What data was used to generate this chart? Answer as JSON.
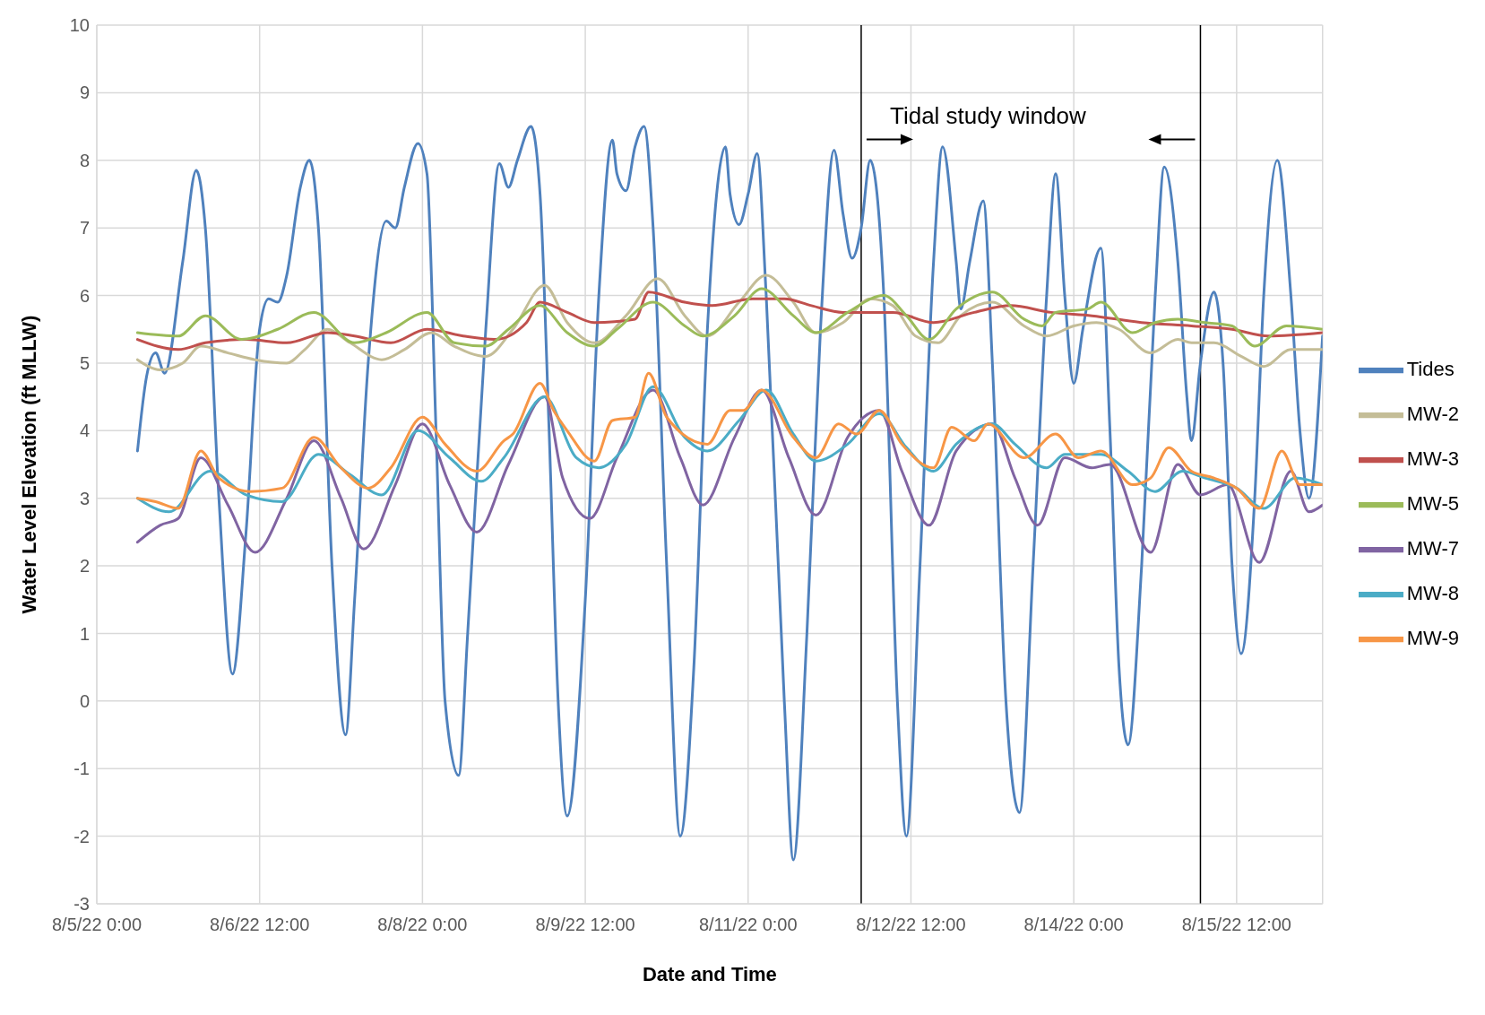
{
  "chart_data": {
    "type": "line",
    "xlabel": "Date and Time",
    "ylabel": "Water Level Elevation (ft MLLW)",
    "xlim": [
      "--08-05T00:00",
      "--08-16T07:00"
    ],
    "ylim": [
      -3,
      10
    ],
    "xticks": [
      {
        "value": "--08-05T00:00",
        "label": "8/5/22 0:00"
      },
      {
        "value": "--08-06T12:00",
        "label": "8/6/22 12:00"
      },
      {
        "value": "--08-08T00:00",
        "label": "8/8/22 0:00"
      },
      {
        "value": "--08-09T12:00",
        "label": "8/9/22 12:00"
      },
      {
        "value": "--08-11T00:00",
        "label": "8/11/22 0:00"
      },
      {
        "value": "--08-12T12:00",
        "label": "8/12/22 12:00"
      },
      {
        "value": "--08-14T00:00",
        "label": "8/14/22 0:00"
      },
      {
        "value": "--08-15T12:00",
        "label": "8/15/22 12:00"
      }
    ],
    "yticks": [
      -3,
      -2,
      -1,
      0,
      1,
      2,
      3,
      4,
      5,
      6,
      7,
      8,
      9,
      10
    ],
    "grid": true,
    "legend": "right",
    "marker": "none",
    "line_style": "solid",
    "ref_lines": [
      {
        "axis": "x",
        "value": "--08-12T01:00",
        "color": "#000000"
      },
      {
        "axis": "x",
        "value": "--08-15T04:00",
        "color": "#000000"
      }
    ],
    "annotations": [
      "Tidal study window"
    ],
    "series": [
      {
        "name": "Tides",
        "color": "#4f81bd",
        "x": [
          "--08-05T09:00",
          "--08-05T11:00",
          "--08-05T13:00",
          "--08-05T15:00",
          "--08-05T19:00",
          "--08-05T22:00",
          "--08-06T00:00",
          "--08-06T03:00",
          "--08-06T06:00",
          "--08-06T09:00",
          "--08-06T12:00",
          "--08-06T14:00",
          "--08-06T16:00",
          "--08-06T18:00",
          "--08-06T21:00",
          "--08-06T23:00",
          "--08-07T01:00",
          "--08-07T04:00",
          "--08-07T07:00",
          "--08-07T09:00",
          "--08-07T12:00",
          "--08-07T16:00",
          "--08-07T18:00",
          "--08-07T20:00",
          "--08-07T23:00",
          "--08-08T01:00",
          "--08-08T03:00",
          "--08-08T05:00",
          "--08-08T08:00",
          "--08-08T10:00",
          "--08-08T14:00",
          "--08-08T17:00",
          "--08-08T19:00",
          "--08-08T21:00",
          "--08-09T00:00",
          "--08-09T02:00",
          "--08-09T04:00",
          "--08-09T06:00",
          "--08-09T08:00",
          "--08-09T12:00",
          "--08-09T15:00",
          "--08-09T18:00",
          "--08-09T19:00",
          "--08-09T21:00",
          "--08-09T23:00",
          "--08-10T01:00",
          "--08-10T03:00",
          "--08-10T06:00",
          "--08-10T09:00",
          "--08-10T12:00",
          "--08-10T15:00",
          "--08-10T19:00",
          "--08-10T20:00",
          "--08-10T22:00",
          "--08-11T00:00",
          "--08-11T02:00",
          "--08-11T04:00",
          "--08-11T08:00",
          "--08-11T10:00",
          "--08-11T13:00",
          "--08-11T16:00",
          "--08-11T19:00",
          "--08-11T21:00",
          "--08-11T23:00",
          "--08-12T01:00",
          "--08-12T03:00",
          "--08-12T06:00",
          "--08-12T09:00",
          "--08-12T11:00",
          "--08-12T14:00",
          "--08-12T17:00",
          "--08-12T19:00",
          "--08-12T22:00",
          "--08-12T23:00",
          "--08-13T01:00",
          "--08-13T04:00",
          "--08-13T06:00",
          "--08-13T09:00",
          "--08-13T12:00",
          "--08-13T15:00",
          "--08-13T18:00",
          "--08-13T20:00",
          "--08-13T22:00",
          "--08-14T00:00",
          "--08-14T02:00",
          "--08-14T06:00",
          "--08-14T08:00",
          "--08-14T10:00",
          "--08-14T12:00",
          "--08-14T15:00",
          "--08-14T18:00",
          "--08-14T20:00",
          "--08-14T23:00",
          "--08-15T01:00",
          "--08-15T02:00",
          "--08-15T04:00",
          "--08-15T07:00",
          "--08-15T09:00",
          "--08-15T11:00",
          "--08-15T13:00",
          "--08-15T16:00",
          "--08-15T18:00",
          "--08-15T21:00",
          "--08-16T00:00",
          "--08-16T02:00",
          "--08-16T04:00",
          "--08-16T07:00"
        ],
        "values": [
          3.7,
          4.8,
          5.15,
          4.85,
          6.5,
          7.85,
          7.0,
          3,
          0.4,
          2.5,
          5.5,
          5.95,
          5.9,
          6.3,
          7.6,
          8.0,
          7,
          2,
          -0.5,
          1.5,
          5,
          7.1,
          7.0,
          7.6,
          8.25,
          7.8,
          4,
          0,
          -1.1,
          1,
          5.5,
          7.95,
          7.6,
          8.0,
          8.5,
          7.5,
          4,
          0,
          -1.7,
          1.5,
          6,
          8.3,
          7.8,
          7.55,
          8.2,
          8.5,
          7,
          2,
          -2.0,
          0.5,
          5.5,
          8.2,
          7.5,
          7.05,
          7.5,
          8.1,
          6,
          0,
          -2.35,
          1,
          5.5,
          8.15,
          7.2,
          6.55,
          7.0,
          8.0,
          6,
          0,
          -2.0,
          2,
          6.5,
          8.2,
          6.5,
          5.8,
          6.5,
          7.4,
          5,
          0,
          -1.65,
          2,
          6,
          7.8,
          6,
          4.7,
          5.5,
          6.7,
          4,
          0.5,
          -0.65,
          2,
          6,
          7.9,
          6.5,
          4.5,
          3.85,
          5,
          6.05,
          5,
          2,
          0.7,
          3,
          6,
          8.0,
          6,
          4,
          3.0,
          5.4
        ]
      },
      {
        "name": "MW-2",
        "color": "#c4bd97",
        "x": [
          "--08-05T09:00",
          "--08-05T14:00",
          "--08-05T19:00",
          "--08-05T23:00",
          "--08-06T05:00",
          "--08-06T11:00",
          "--08-06T18:00",
          "--08-06T22:00",
          "--08-07T03:00",
          "--08-07T08:00",
          "--08-07T15:00",
          "--08-07T20:00",
          "--08-08T02:00",
          "--08-08T07:00",
          "--08-08T14:00",
          "--08-08T20:00",
          "--08-09T03:00",
          "--08-09T08:00",
          "--08-09T14:00",
          "--08-09T21:00",
          "--08-10T04:00",
          "--08-10T10:00",
          "--08-10T15:00",
          "--08-10T22:00",
          "--08-11T04:00",
          "--08-11T10:00",
          "--08-11T15:00",
          "--08-11T21:00",
          "--08-12T03:00",
          "--08-12T08:00",
          "--08-12T13:00",
          "--08-12T18:00",
          "--08-12T23:00",
          "--08-13T06:00",
          "--08-13T13:00",
          "--08-13T18:00",
          "--08-14T00:00",
          "--08-14T05:00",
          "--08-14T10:00",
          "--08-14T17:00",
          "--08-14T23:00",
          "--08-15T02:00",
          "--08-15T07:00",
          "--08-15T13:00",
          "--08-15T18:00",
          "--08-16T00:00",
          "--08-16T07:00"
        ],
        "values": [
          5.05,
          4.9,
          5.0,
          5.25,
          5.15,
          5.05,
          5.0,
          5.2,
          5.5,
          5.3,
          5.05,
          5.2,
          5.45,
          5.25,
          5.1,
          5.5,
          6.15,
          5.6,
          5.3,
          5.7,
          6.25,
          5.7,
          5.4,
          5.9,
          6.3,
          5.9,
          5.45,
          5.6,
          5.95,
          5.85,
          5.4,
          5.3,
          5.7,
          5.9,
          5.55,
          5.4,
          5.55,
          5.6,
          5.5,
          5.15,
          5.35,
          5.3,
          5.3,
          5.1,
          4.95,
          5.2,
          5.2
        ]
      },
      {
        "name": "MW-3",
        "color": "#c0504d",
        "x": [
          "--08-05T09:00",
          "--08-05T18:00",
          "--08-06T00:00",
          "--08-06T09:00",
          "--08-06T18:00",
          "--08-07T03:00",
          "--08-07T09:00",
          "--08-07T17:00",
          "--08-08T01:00",
          "--08-08T09:00",
          "--08-08T16:00",
          "--08-08T23:00",
          "--08-09T02:00",
          "--08-09T08:00",
          "--08-09T14:00",
          "--08-09T23:00",
          "--08-10T02:00",
          "--08-10T10:00",
          "--08-10T16:00",
          "--08-11T01:00",
          "--08-11T08:00",
          "--08-11T14:00",
          "--08-11T21:00",
          "--08-12T08:00",
          "--08-12T17:00",
          "--08-13T02:00",
          "--08-13T10:00",
          "--08-13T19:00",
          "--08-14T04:00",
          "--08-14T15:00",
          "--08-15T02:00",
          "--08-15T11:00",
          "--08-15T19:00",
          "--08-16T07:00"
        ],
        "values": [
          5.35,
          5.2,
          5.3,
          5.35,
          5.3,
          5.45,
          5.4,
          5.3,
          5.5,
          5.4,
          5.35,
          5.6,
          5.9,
          5.75,
          5.6,
          5.65,
          6.05,
          5.9,
          5.85,
          5.95,
          5.95,
          5.85,
          5.75,
          5.75,
          5.6,
          5.75,
          5.85,
          5.75,
          5.7,
          5.6,
          5.55,
          5.5,
          5.4,
          5.45
        ]
      },
      {
        "name": "MW-5",
        "color": "#9bbb59",
        "x": [
          "--08-05T09:00",
          "--08-05T18:00",
          "--08-06T00:00",
          "--08-06T08:00",
          "--08-06T16:00",
          "--08-07T00:00",
          "--08-07T09:00",
          "--08-07T16:00",
          "--08-08T01:00",
          "--08-08T07:00",
          "--08-08T14:00",
          "--08-08T19:00",
          "--08-09T02:00",
          "--08-09T08:00",
          "--08-09T14:00",
          "--08-09T19:00",
          "--08-10T03:00",
          "--08-10T10:00",
          "--08-10T14:00",
          "--08-10T21:00",
          "--08-11T03:00",
          "--08-11T10:00",
          "--08-11T15:00",
          "--08-11T22:00",
          "--08-12T06:00",
          "--08-12T11:00",
          "--08-12T16:00",
          "--08-12T22:00",
          "--08-13T06:00",
          "--08-13T13:00",
          "--08-13T17:00",
          "--08-13T20:00",
          "--08-14T03:00",
          "--08-14T06:00",
          "--08-14T13:00",
          "--08-14T18:00",
          "--08-14T23:00",
          "--08-15T05:00",
          "--08-15T11:00",
          "--08-15T16:00",
          "--08-15T23:00",
          "--08-16T07:00"
        ],
        "values": [
          5.45,
          5.4,
          5.7,
          5.35,
          5.5,
          5.75,
          5.3,
          5.45,
          5.75,
          5.3,
          5.25,
          5.5,
          5.85,
          5.45,
          5.25,
          5.5,
          5.9,
          5.55,
          5.4,
          5.7,
          6.1,
          5.7,
          5.45,
          5.75,
          6.0,
          5.7,
          5.35,
          5.8,
          6.05,
          5.65,
          5.55,
          5.75,
          5.8,
          5.9,
          5.45,
          5.6,
          5.65,
          5.6,
          5.55,
          5.25,
          5.55,
          5.5
        ]
      },
      {
        "name": "MW-7",
        "color": "#8064a2",
        "x": [
          "--08-05T09:00",
          "--08-05T14:00",
          "--08-05T18:00",
          "--08-05T23:00",
          "--08-06T05:00",
          "--08-06T11:00",
          "--08-06T18:00",
          "--08-07T00:00",
          "--08-07T06:00",
          "--08-07T11:00",
          "--08-07T18:00",
          "--08-08T00:00",
          "--08-08T06:00",
          "--08-08T12:00",
          "--08-08T19:00",
          "--08-09T03:00",
          "--08-09T07:00",
          "--08-09T13:00",
          "--08-09T19:00",
          "--08-10T03:00",
          "--08-10T09:00",
          "--08-10T14:00",
          "--08-10T21:00",
          "--08-11T03:00",
          "--08-11T09:00",
          "--08-11T15:00",
          "--08-11T22:00",
          "--08-12T05:00",
          "--08-12T10:00",
          "--08-12T16:00",
          "--08-12T22:00",
          "--08-13T06:00",
          "--08-13T11:00",
          "--08-13T16:00",
          "--08-13T22:00",
          "--08-14T04:00",
          "--08-14T08:00",
          "--08-14T17:00",
          "--08-14T23:00",
          "--08-15T04:00",
          "--08-15T10:00",
          "--08-15T17:00",
          "--08-16T00:00",
          "--08-16T04:00",
          "--08-16T07:00"
        ],
        "values": [
          2.35,
          2.6,
          2.7,
          3.6,
          2.9,
          2.2,
          3.0,
          3.85,
          3.0,
          2.25,
          3.2,
          4.1,
          3.2,
          2.5,
          3.5,
          4.5,
          3.3,
          2.7,
          3.6,
          4.6,
          3.6,
          2.9,
          3.9,
          4.6,
          3.6,
          2.75,
          3.9,
          4.3,
          3.4,
          2.6,
          3.7,
          4.1,
          3.3,
          2.6,
          3.6,
          3.45,
          3.5,
          2.2,
          3.5,
          3.05,
          3.2,
          2.05,
          3.4,
          2.8,
          2.9
        ]
      },
      {
        "name": "MW-8",
        "color": "#4bacc6",
        "x": [
          "--08-05T09:00",
          "--08-05T16:00",
          "--08-06T01:00",
          "--08-06T09:00",
          "--08-06T17:00",
          "--08-07T01:00",
          "--08-07T08:00",
          "--08-07T15:00",
          "--08-07T23:00",
          "--08-08T06:00",
          "--08-08T13:00",
          "--08-08T18:00",
          "--08-09T03:00",
          "--08-09T10:00",
          "--08-09T15:00",
          "--08-09T21:00",
          "--08-10T03:00",
          "--08-10T10:00",
          "--08-10T15:00",
          "--08-10T22:00",
          "--08-11T04:00",
          "--08-11T10:00",
          "--08-11T15:00",
          "--08-11T22:00",
          "--08-12T05:00",
          "--08-12T11:00",
          "--08-12T17:00",
          "--08-12T22:00",
          "--08-13T06:00",
          "--08-13T11:00",
          "--08-13T18:00",
          "--08-13T22:00",
          "--08-14T06:00",
          "--08-14T12:00",
          "--08-14T18:00",
          "--08-15T00:00",
          "--08-15T05:00",
          "--08-15T12:00",
          "--08-15T18:00",
          "--08-16T01:00",
          "--08-16T07:00"
        ],
        "values": [
          3.0,
          2.8,
          3.4,
          3.05,
          2.95,
          3.65,
          3.35,
          3.05,
          4.0,
          3.6,
          3.25,
          3.6,
          4.5,
          3.6,
          3.45,
          3.8,
          4.65,
          3.9,
          3.7,
          4.15,
          4.6,
          3.95,
          3.55,
          3.8,
          4.25,
          3.75,
          3.4,
          3.8,
          4.1,
          3.8,
          3.45,
          3.65,
          3.65,
          3.4,
          3.1,
          3.4,
          3.3,
          3.15,
          2.85,
          3.3,
          3.2
        ]
      },
      {
        "name": "MW-9",
        "color": "#f79646",
        "x": [
          "--08-05T09:00",
          "--08-05T13:00",
          "--08-05T18:00",
          "--08-05T23:00",
          "--08-06T03:00",
          "--08-06T10:00",
          "--08-06T17:00",
          "--08-07T00:00",
          "--08-07T06:00",
          "--08-07T12:00",
          "--08-07T17:00",
          "--08-08T00:00",
          "--08-08T05:00",
          "--08-08T12:00",
          "--08-08T18:00",
          "--08-08T20:00",
          "--08-09T02:00",
          "--08-09T05:00",
          "--08-09T08:00",
          "--08-09T14:00",
          "--08-09T18:00",
          "--08-09T23:00",
          "--08-10T02:00",
          "--08-10T06:00",
          "--08-10T15:00",
          "--08-10T20:00",
          "--08-10T23:00",
          "--08-11T03:00",
          "--08-11T10:00",
          "--08-11T15:00",
          "--08-11T20:00",
          "--08-12T00:00",
          "--08-12T05:00",
          "--08-12T10:00",
          "--08-12T17:00",
          "--08-12T21:00",
          "--08-13T02:00",
          "--08-13T05:00",
          "--08-13T13:00",
          "--08-13T20:00",
          "--08-14T01:00",
          "--08-14T06:00",
          "--08-14T13:00",
          "--08-14T17:00",
          "--08-14T21:00",
          "--08-15T02:00",
          "--08-15T07:00",
          "--08-15T12:00",
          "--08-15T17:00",
          "--08-15T22:00",
          "--08-16T02:00",
          "--08-16T07:00"
        ],
        "values": [
          3.0,
          2.95,
          2.85,
          3.7,
          3.3,
          3.1,
          3.15,
          3.9,
          3.45,
          3.15,
          3.45,
          4.2,
          3.8,
          3.4,
          3.85,
          3.95,
          4.7,
          4.3,
          4.0,
          3.55,
          4.15,
          4.2,
          4.85,
          4.2,
          3.8,
          4.3,
          4.3,
          4.6,
          3.9,
          3.6,
          4.1,
          3.95,
          4.3,
          3.8,
          3.45,
          4.05,
          3.85,
          4.1,
          3.6,
          3.95,
          3.6,
          3.7,
          3.2,
          3.3,
          3.75,
          3.4,
          3.3,
          3.15,
          2.85,
          3.7,
          3.2,
          3.2
        ]
      }
    ]
  }
}
